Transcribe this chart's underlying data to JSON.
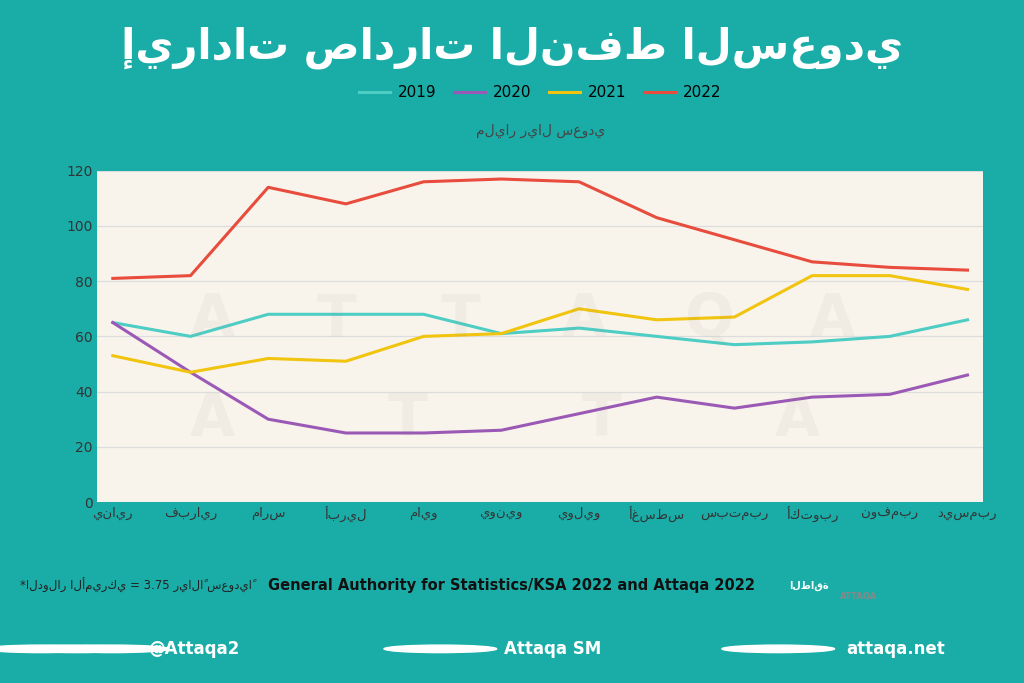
{
  "title_arabic": "إيرادات صادرات النفط السعودي",
  "ylabel_arabic": "مليار ريال سعودي",
  "months": [
    "يناير",
    "فبراير",
    "مارس",
    "أبريل",
    "مايو",
    "يونيو",
    "يوليو",
    "أغسطس",
    "سبتمبر",
    "أكتوبر",
    "نوفمبر",
    "ديسمبر"
  ],
  "series_2019": [
    65,
    60,
    68,
    68,
    68,
    61,
    63,
    60,
    57,
    58,
    60,
    66
  ],
  "series_2020": [
    65,
    47,
    30,
    25,
    25,
    26,
    32,
    38,
    34,
    38,
    39,
    46
  ],
  "series_2021": [
    53,
    47,
    52,
    51,
    60,
    61,
    70,
    66,
    67,
    82,
    82,
    77
  ],
  "series_2022": [
    81,
    82,
    114,
    108,
    116,
    117,
    116,
    103,
    95,
    87,
    85,
    84
  ],
  "color_2019": "#4ecdc4",
  "color_2020": "#9b59b6",
  "color_2021": "#f1c40f",
  "color_2022": "#e74c3c",
  "ylim": [
    0,
    120
  ],
  "yticks": [
    0,
    20,
    40,
    60,
    80,
    100,
    120
  ],
  "bg_outer": "#1aada8",
  "bg_title": "#f5a623",
  "bg_chart_area": "#f0ebe0",
  "bg_chart_inner": "#f8f4ec",
  "bg_footer": "#f5a623",
  "bg_bottom": "#1aada8",
  "grid_color": "#dddddd",
  "footer_text": "General Authority for Statistics/KSA 2022 and Attaqa 2022",
  "footnote": "*الدولار الأميركي = 3.75 ريالاً سعودياً",
  "social_left": "@Attaqa2",
  "social_mid": "Attaqa SM",
  "social_right": "attaqa.net",
  "legend_labels": [
    "2019",
    "2020",
    "2021",
    "2022"
  ],
  "line_width": 2.2
}
